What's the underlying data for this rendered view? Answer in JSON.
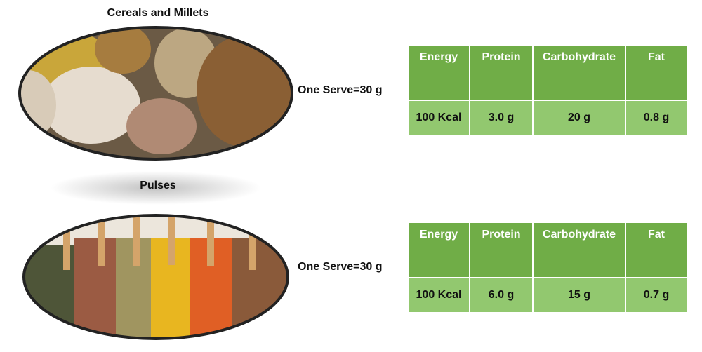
{
  "sections": [
    {
      "title": "Cereals and Millets",
      "serve": "One Serve=30 g",
      "table": {
        "headers": [
          "Energy",
          "Protein",
          "Carbohydrate",
          "Fat"
        ],
        "row": [
          "100 Kcal",
          "3.0 g",
          "20 g",
          "0.8 g"
        ]
      }
    },
    {
      "title": "Pulses",
      "serve": "One Serve=30 g",
      "table": {
        "headers": [
          "Energy",
          "Protein",
          "Carbohydrate",
          "Fat"
        ],
        "row": [
          "100 Kcal",
          "6.0 g",
          "15 g",
          "0.7 g"
        ]
      }
    }
  ]
}
